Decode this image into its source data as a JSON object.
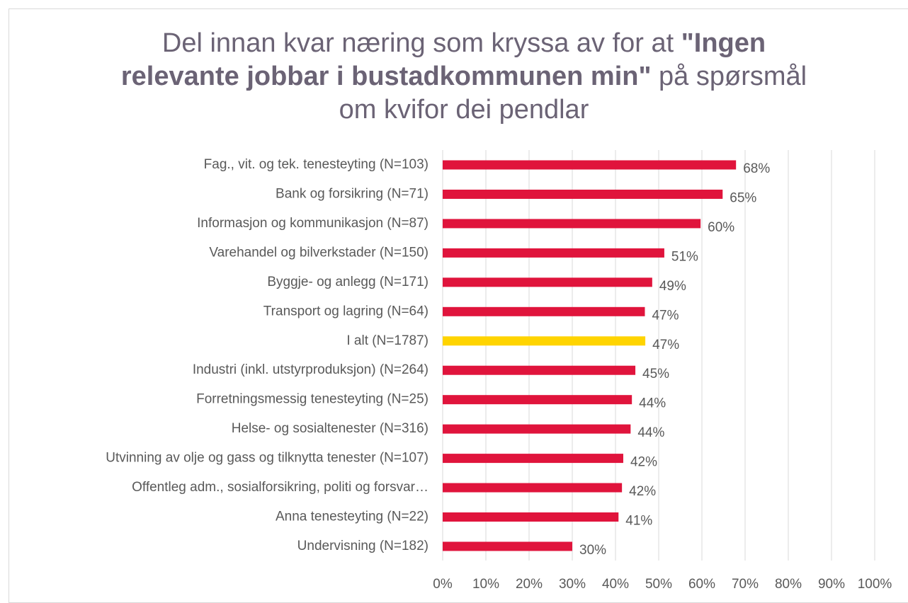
{
  "chart_data": {
    "type": "bar",
    "orientation": "horizontal",
    "title": [
      {
        "text": "Del innan kvar næring som kryssa av for at ",
        "bold": false
      },
      {
        "text": "\"Ingen relevante jobbar i bustadkommunen min\"",
        "bold": true
      },
      {
        "text": " på spørsmål om kvifor dei pendlar",
        "bold": false
      }
    ],
    "categories": [
      "Fag., vit. og tek. tenesteyting (N=103)",
      "Bank og forsikring (N=71)",
      "Informasjon og kommunikasjon (N=87)",
      "Varehandel og bilverkstader (N=150)",
      "Byggje- og anlegg (N=171)",
      "Transport og lagring (N=64)",
      "I alt (N=1787)",
      "Industri (inkl. utstyrproduksjon) (N=264)",
      "Forretningsmessig tenesteyting (N=25)",
      "Helse- og sosialtenester (N=316)",
      "Utvinning av olje og gass og tilknytta tenester (N=107)",
      "Offentleg adm., sosialforsikring, politi og forsvar…",
      "Anna tenesteyting (N=22)",
      "Undervisning (N=182)"
    ],
    "values": [
      67.9,
      64.8,
      59.7,
      51.3,
      48.5,
      46.8,
      46.9,
      44.6,
      43.8,
      43.5,
      41.8,
      41.5,
      40.7,
      30.0
    ],
    "value_labels": [
      "68%",
      "65%",
      "60%",
      "51%",
      "49%",
      "47%",
      "47%",
      "45%",
      "44%",
      "44%",
      "42%",
      "42%",
      "41%",
      "30%"
    ],
    "colors": [
      "#e0143c",
      "#e0143c",
      "#e0143c",
      "#e0143c",
      "#e0143c",
      "#e0143c",
      "#ffd400",
      "#e0143c",
      "#e0143c",
      "#e0143c",
      "#e0143c",
      "#e0143c",
      "#e0143c",
      "#e0143c"
    ],
    "xlim": [
      0,
      100
    ],
    "xticks": [
      {
        "value": 0,
        "label": "0%"
      },
      {
        "value": 10,
        "label": "10%"
      },
      {
        "value": 20,
        "label": "20%"
      },
      {
        "value": 30,
        "label": "30%"
      },
      {
        "value": 40,
        "label": "40%"
      },
      {
        "value": 50,
        "label": "50%"
      },
      {
        "value": 60,
        "label": "60%"
      },
      {
        "value": 70,
        "label": "70%"
      },
      {
        "value": 80,
        "label": "80%"
      },
      {
        "value": 90,
        "label": "90%"
      },
      {
        "value": 100,
        "label": "100%"
      }
    ],
    "grid": true
  }
}
